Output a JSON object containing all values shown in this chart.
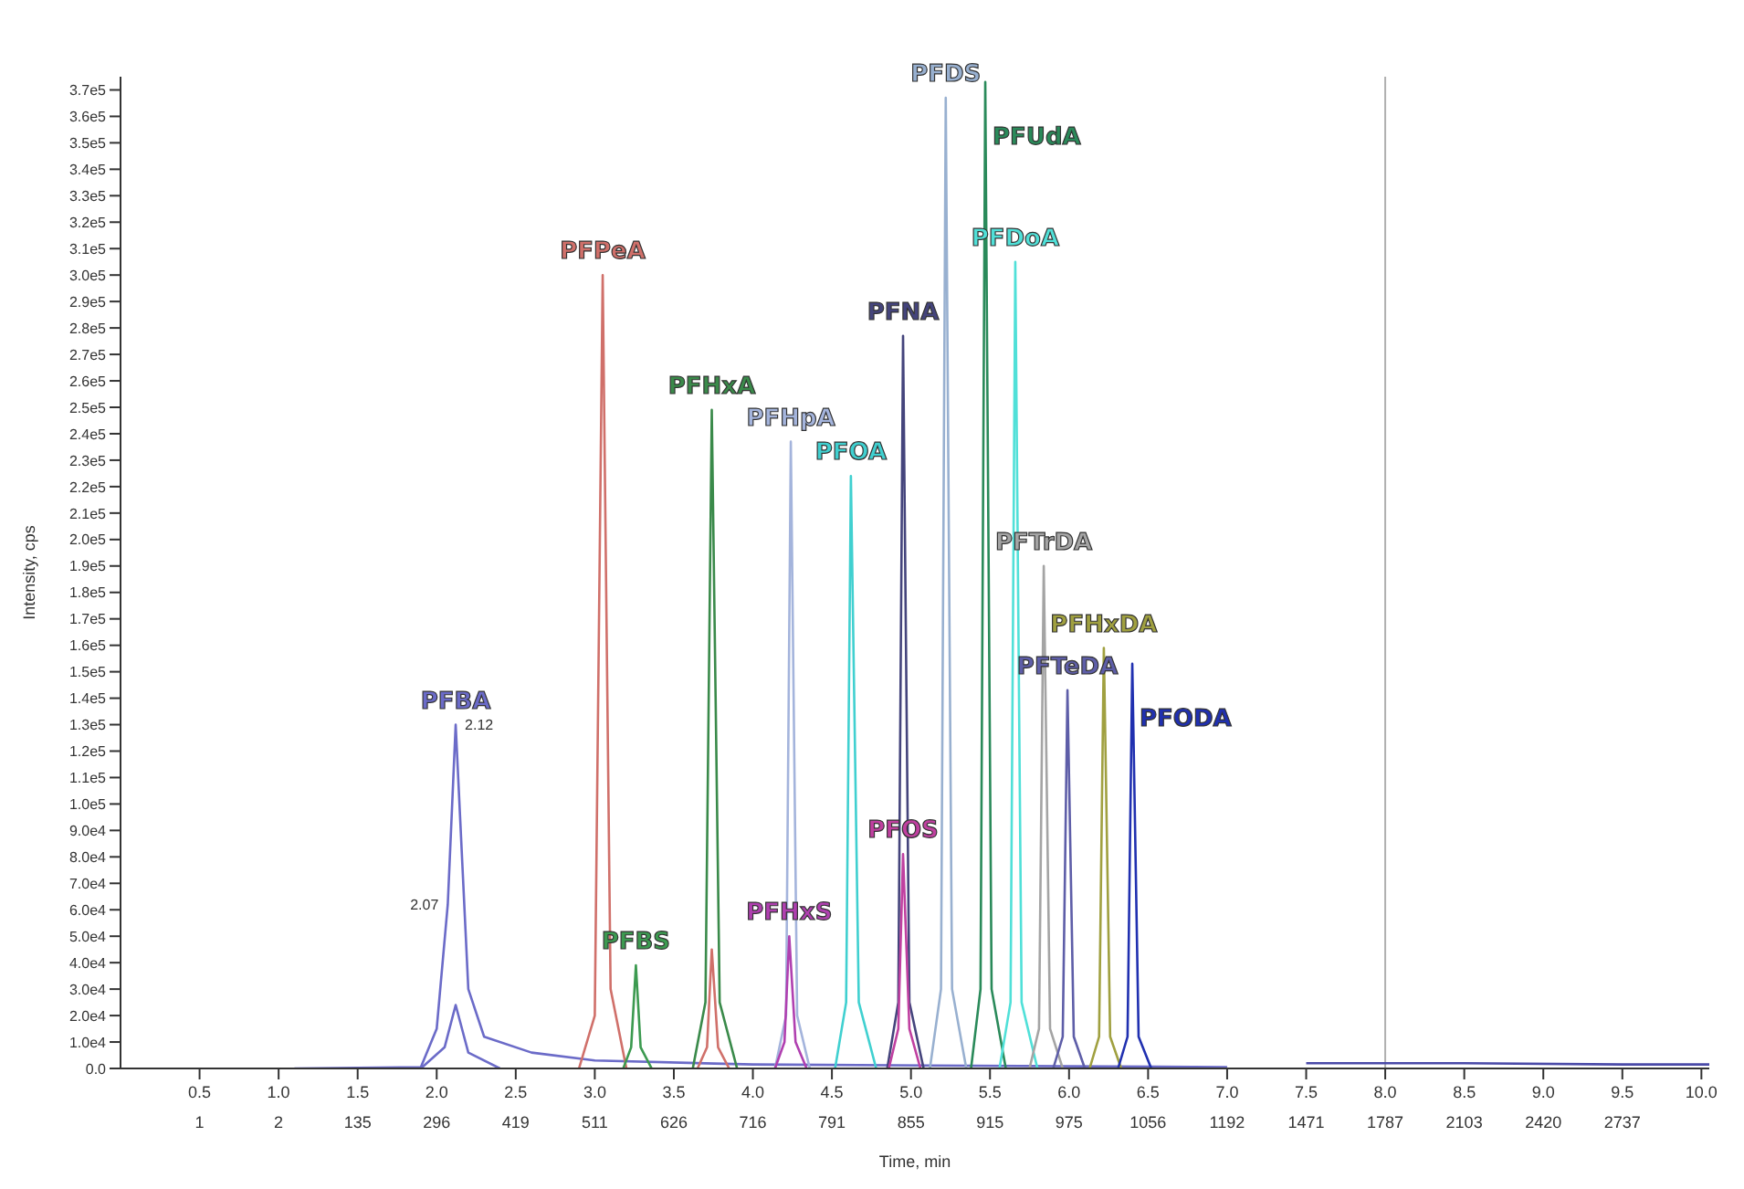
{
  "chart_data": {
    "type": "line",
    "xlabel": "Time, min",
    "ylabel": "Intensity, cps",
    "xlim": [
      0,
      10.05
    ],
    "ylim": [
      0,
      375000
    ],
    "xticks": [
      0.5,
      {
        "value": 1,
        "label": "1.0"
      },
      1.5,
      {
        "value": 2,
        "label": "2.0"
      },
      2.5,
      {
        "value": 3,
        "label": "3.0"
      },
      3.5,
      {
        "value": 4,
        "label": "4.0"
      },
      4.5,
      {
        "value": 5,
        "label": "5.0"
      },
      5.5,
      {
        "value": 6,
        "label": "6.0"
      },
      6.5,
      {
        "value": 7,
        "label": "7.0"
      },
      7.5,
      {
        "value": 8,
        "label": "8.0"
      },
      8.5,
      {
        "value": 9,
        "label": "9.0"
      },
      9.5,
      {
        "value": 10,
        "label": "10.0"
      }
    ],
    "yticks": [
      {
        "value": 0,
        "label": "0.0"
      },
      {
        "value": 10000,
        "label": "1.0e4"
      },
      {
        "value": 20000,
        "label": "2.0e4"
      },
      {
        "value": 30000,
        "label": "3.0e4"
      },
      {
        "value": 40000,
        "label": "4.0e4"
      },
      {
        "value": 50000,
        "label": "5.0e4"
      },
      {
        "value": 60000,
        "label": "6.0e4"
      },
      {
        "value": 70000,
        "label": "7.0e4"
      },
      {
        "value": 80000,
        "label": "8.0e4"
      },
      {
        "value": 90000,
        "label": "9.0e4"
      },
      {
        "value": 100000,
        "label": "1.0e5"
      },
      {
        "value": 110000,
        "label": "1.1e5"
      },
      {
        "value": 120000,
        "label": "1.2e5"
      },
      {
        "value": 130000,
        "label": "1.3e5"
      },
      {
        "value": 140000,
        "label": "1.4e5"
      },
      {
        "value": 150000,
        "label": "1.5e5"
      },
      {
        "value": 160000,
        "label": "1.6e5"
      },
      {
        "value": 170000,
        "label": "1.7e5"
      },
      {
        "value": 180000,
        "label": "1.8e5"
      },
      {
        "value": 190000,
        "label": "1.9e5"
      },
      {
        "value": 200000,
        "label": "2.0e5"
      },
      {
        "value": 210000,
        "label": "2.1e5"
      },
      {
        "value": 220000,
        "label": "2.2e5"
      },
      {
        "value": 230000,
        "label": "2.3e5"
      },
      {
        "value": 240000,
        "label": "2.4e5"
      },
      {
        "value": 250000,
        "label": "2.5e5"
      },
      {
        "value": 260000,
        "label": "2.6e5"
      },
      {
        "value": 270000,
        "label": "2.7e5"
      },
      {
        "value": 280000,
        "label": "2.8e5"
      },
      {
        "value": 290000,
        "label": "2.9e5"
      },
      {
        "value": 300000,
        "label": "3.0e5"
      },
      {
        "value": 310000,
        "label": "3.1e5"
      },
      {
        "value": 320000,
        "label": "3.2e5"
      },
      {
        "value": 330000,
        "label": "3.3e5"
      },
      {
        "value": 340000,
        "label": "3.4e5"
      },
      {
        "value": 350000,
        "label": "3.5e5"
      },
      {
        "value": 360000,
        "label": "3.6e5"
      },
      {
        "value": 370000,
        "label": "3.7e5"
      }
    ],
    "grid": false,
    "marker": "none",
    "line_style": "solid",
    "ref_lines": [
      {
        "axis": "x",
        "value": 8.0,
        "color": "#b0b0b0"
      }
    ],
    "annotations": [
      "1",
      "2",
      "135",
      "296",
      "419",
      "511",
      "626",
      "716",
      "791",
      "855",
      "915",
      "975",
      "1056",
      "1192",
      "1471",
      "1787",
      "2103",
      "2420",
      "2737",
      {
        "text": "2.12",
        "x": 2.12,
        "y": 130000
      },
      {
        "text": "2.07",
        "x": 2.07,
        "y": 62000
      }
    ],
    "series": [
      {
        "name": "PFBA",
        "color": "#6b6bc8",
        "x": [
          1.1,
          1.9,
          2.0,
          2.07,
          2.12,
          2.2,
          2.3,
          2.6,
          3.0,
          4.0,
          7.0
        ],
        "values": [
          0,
          500,
          15000,
          62000,
          130000,
          30000,
          12000,
          6000,
          3000,
          1500,
          500
        ]
      },
      {
        "color": "#6b6bc8",
        "x": [
          1.9,
          2.05,
          2.12,
          2.2,
          2.4
        ],
        "values": [
          0,
          8000,
          24000,
          6000,
          0
        ]
      },
      {
        "color": "#4a4aa8",
        "x": [
          7.5,
          8.5,
          9.5,
          10.05
        ],
        "values": [
          2000,
          2000,
          1500,
          1500
        ]
      },
      {
        "name": "PFPeA",
        "color": "#d0706a",
        "x": [
          2.9,
          3.0,
          3.05,
          3.1,
          3.2
        ],
        "values": [
          0,
          20000,
          300000,
          30000,
          0
        ]
      },
      {
        "name": "PFBS",
        "color": "#3c9a50",
        "x": [
          3.18,
          3.23,
          3.26,
          3.29,
          3.36
        ],
        "values": [
          0,
          8000,
          39000,
          8000,
          0
        ]
      },
      {
        "color": "#d0706a",
        "x": [
          3.65,
          3.71,
          3.74,
          3.78,
          3.85
        ],
        "values": [
          0,
          8000,
          45000,
          8000,
          0
        ]
      },
      {
        "name": "PFHxA",
        "color": "#3a8a4a",
        "x": [
          3.62,
          3.7,
          3.74,
          3.79,
          3.9
        ],
        "values": [
          0,
          25000,
          249000,
          25000,
          0
        ]
      },
      {
        "name": "PFHpA",
        "color": "#a4b4dc",
        "x": [
          4.14,
          4.21,
          4.24,
          4.28,
          4.36
        ],
        "values": [
          0,
          20000,
          237000,
          20000,
          0
        ]
      },
      {
        "name": "PFHxS",
        "color": "#b040b0",
        "x": [
          4.14,
          4.2,
          4.23,
          4.27,
          4.34
        ],
        "values": [
          0,
          10000,
          50000,
          10000,
          0
        ]
      },
      {
        "name": "PFOA",
        "color": "#40d0d0",
        "x": [
          4.52,
          4.59,
          4.62,
          4.67,
          4.78
        ],
        "values": [
          0,
          25000,
          224000,
          25000,
          0
        ]
      },
      {
        "name": "PFNA",
        "color": "#44447c",
        "x": [
          4.85,
          4.92,
          4.95,
          4.99,
          5.08
        ],
        "values": [
          0,
          25000,
          277000,
          25000,
          0
        ]
      },
      {
        "name": "PFOS",
        "color": "#c040a0",
        "x": [
          4.86,
          4.92,
          4.95,
          4.99,
          5.06
        ],
        "values": [
          0,
          15000,
          81000,
          15000,
          0
        ]
      },
      {
        "name": "PFDS",
        "color": "#98b0d0",
        "x": [
          5.12,
          5.19,
          5.22,
          5.26,
          5.35
        ],
        "values": [
          0,
          30000,
          367000,
          30000,
          0
        ]
      },
      {
        "name": "PFUdA",
        "color": "#2a8a5a",
        "x": [
          5.38,
          5.44,
          5.47,
          5.51,
          5.6
        ],
        "values": [
          0,
          30000,
          373000,
          30000,
          0
        ]
      },
      {
        "name": "PFDoA",
        "color": "#50e0d8",
        "x": [
          5.56,
          5.63,
          5.66,
          5.7,
          5.8
        ],
        "values": [
          0,
          25000,
          305000,
          25000,
          0
        ]
      },
      {
        "name": "PFTrDA",
        "color": "#a4a4a4",
        "x": [
          5.75,
          5.81,
          5.84,
          5.88,
          5.96
        ],
        "values": [
          0,
          15000,
          190000,
          15000,
          0
        ]
      },
      {
        "name": "PFTeDA",
        "color": "#5e5ea8",
        "x": [
          5.9,
          5.96,
          5.99,
          6.03,
          6.1
        ],
        "values": [
          0,
          12000,
          143000,
          12000,
          0
        ]
      },
      {
        "name": "PFHxDA",
        "color": "#a0a040",
        "x": [
          6.13,
          6.19,
          6.22,
          6.26,
          6.33
        ],
        "values": [
          0,
          12000,
          159000,
          12000,
          0
        ]
      },
      {
        "name": "PFODA",
        "color": "#2030b0",
        "x": [
          6.31,
          6.37,
          6.4,
          6.44,
          6.52
        ],
        "values": [
          0,
          12000,
          153000,
          12000,
          0
        ]
      }
    ]
  }
}
